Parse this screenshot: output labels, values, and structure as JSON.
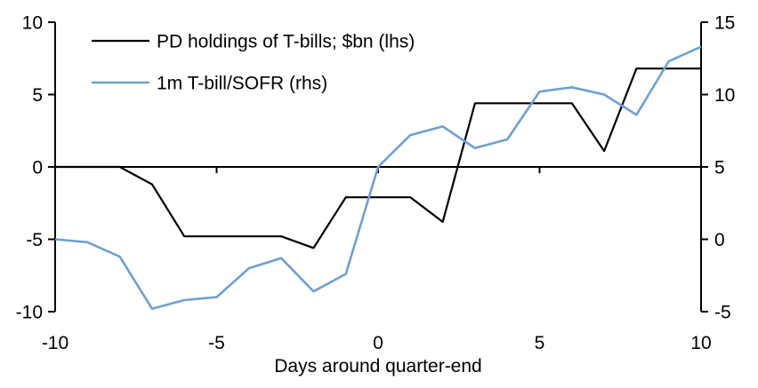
{
  "figure": {
    "background": "#ffffff",
    "text_color": "#000000"
  },
  "legend": {
    "items": [
      {
        "label": "PD holdings of T-bills; $bn (lhs)",
        "series": "pd_holdings"
      },
      {
        "label": "1m T-bill/SOFR (rhs)",
        "series": "tbill_sofr"
      }
    ]
  },
  "chart_data": {
    "type": "line",
    "title": "",
    "xlabel": "Days around quarter-end",
    "x": [
      -10,
      -9,
      -8,
      -7,
      -6,
      -5,
      -4,
      -3,
      -2,
      -1,
      0,
      1,
      2,
      3,
      4,
      5,
      6,
      7,
      8,
      9,
      10
    ],
    "x_ticks": [
      -10,
      -5,
      0,
      5,
      10
    ],
    "x_range": [
      -10,
      10
    ],
    "grid": false,
    "legend_position": "top-left-inside",
    "axes": {
      "left": {
        "ticks": [
          10,
          5,
          0,
          -5,
          -10
        ],
        "range": [
          -10,
          10
        ]
      },
      "right": {
        "ticks": [
          15,
          10,
          5,
          0,
          -5
        ],
        "range": [
          -5,
          15
        ]
      }
    },
    "series": [
      {
        "id": "pd_holdings",
        "name": "PD holdings of T-bills; $bn (lhs)",
        "axis": "left",
        "color": "#000000",
        "stroke_width": 2.2,
        "values": [
          0,
          0,
          0,
          -1.2,
          -4.8,
          -4.8,
          -4.8,
          -4.8,
          -5.6,
          -2.1,
          -2.1,
          -2.1,
          -3.8,
          4.4,
          4.4,
          4.4,
          4.4,
          1.1,
          6.8,
          6.8,
          6.8
        ]
      },
      {
        "id": "tbill_sofr",
        "name": "1m T-bill/SOFR (rhs)",
        "axis": "right",
        "color": "#6ea0d2",
        "stroke_width": 2.6,
        "values": [
          0.0,
          -0.2,
          -1.2,
          -4.8,
          -4.2,
          -4.0,
          -2.0,
          -1.3,
          -3.6,
          -2.4,
          5.0,
          7.2,
          7.8,
          6.3,
          6.9,
          10.2,
          10.5,
          10.0,
          8.6,
          12.3,
          13.3
        ]
      }
    ]
  }
}
